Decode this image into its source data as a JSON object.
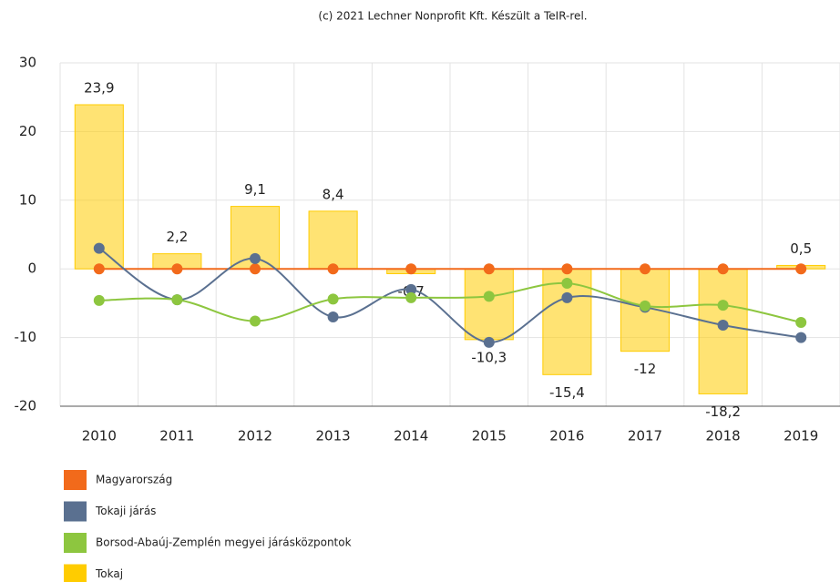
{
  "chart_data": {
    "type": "bar_line",
    "title": "(c) 2021 Lechner Nonprofit Kft. Készült a TeIR-rel.",
    "categories": [
      "2010",
      "2011",
      "2012",
      "2013",
      "2014",
      "2015",
      "2016",
      "2017",
      "2018",
      "2019"
    ],
    "ylim": [
      -20,
      30
    ],
    "yticks": [
      30,
      20,
      10,
      0,
      -10,
      -20
    ],
    "grid": true,
    "series": [
      {
        "name": "Magyarország",
        "color": "#f26a1b",
        "kind": "line",
        "values": [
          0,
          0,
          0,
          0,
          0,
          0,
          0,
          0,
          0,
          0
        ]
      },
      {
        "name": "Tokaji járás",
        "color": "#5a7090",
        "kind": "line",
        "values": [
          3,
          -4.5,
          1.5,
          -7,
          -3,
          -10.7,
          -4.2,
          -5.6,
          -8.2,
          -10
        ]
      },
      {
        "name": "Borsod-Abaúj-Zemplén megyei járásközpontok",
        "color": "#8dc63f",
        "kind": "line",
        "values": [
          -4.6,
          -4.5,
          -7.6,
          -4.4,
          -4.2,
          -4,
          -2.1,
          -5.4,
          -5.3,
          -7.8
        ]
      },
      {
        "name": "Tokaj",
        "color": "#ffcc00",
        "kind": "bar",
        "values": [
          23.9,
          2.2,
          9.1,
          8.4,
          -0.7,
          -10.3,
          -15.4,
          -12,
          -18.2,
          0.5
        ],
        "value_labels": [
          "23,9",
          "2,2",
          "9,1",
          "8,4",
          "-0,7",
          "-10,3",
          "-15,4",
          "-12",
          "-18,2",
          "0,5"
        ]
      }
    ]
  }
}
